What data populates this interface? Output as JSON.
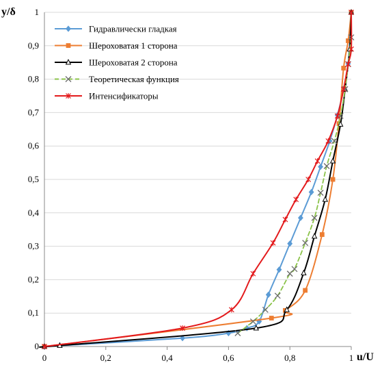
{
  "chart_data": {
    "type": "line",
    "xlabel": "u/U",
    "ylabel": "y/δ",
    "xlim": [
      0,
      1
    ],
    "ylim": [
      0,
      1
    ],
    "x_ticks": [
      "0",
      "0,2",
      "0,4",
      "0,6",
      "0,8",
      "1"
    ],
    "y_ticks": [
      "0",
      "0,1",
      "0,2",
      "0,3",
      "0,4",
      "0,5",
      "0,6",
      "0,7",
      "0,8",
      "0,9",
      "1"
    ],
    "grid": "horizontal",
    "legend_position": "top-left",
    "series": [
      {
        "name": "Гидравлически гладкая",
        "color": "#5B9BD5",
        "dash": "solid",
        "marker": "diamond",
        "x": [
          0,
          0.45,
          0.6,
          0.66,
          0.7,
          0.73,
          0.765,
          0.8,
          0.835,
          0.87,
          0.9,
          0.93,
          0.955,
          0.975,
          0.99,
          1.0
        ],
        "y": [
          0,
          0.025,
          0.04,
          0.055,
          0.075,
          0.155,
          0.23,
          0.308,
          0.385,
          0.462,
          0.538,
          0.615,
          0.692,
          0.77,
          0.846,
          1.0
        ]
      },
      {
        "name": "Шероховатая 1 сторона",
        "color": "#ED7D31",
        "dash": "solid",
        "marker": "square",
        "x": [
          0,
          0.74,
          0.785,
          0.85,
          0.905,
          0.94,
          0.96,
          0.975,
          0.99,
          1.0
        ],
        "y": [
          0,
          0.085,
          0.108,
          0.168,
          0.335,
          0.5,
          0.667,
          0.833,
          0.915,
          1.0
        ]
      },
      {
        "name": "Шероховатая 2 сторона",
        "color": "#000000",
        "dash": "solid",
        "marker": "triangle",
        "x": [
          0,
          0.05,
          0.69,
          0.79,
          0.845,
          0.88,
          0.915,
          0.94,
          0.965,
          0.98,
          0.995,
          1.0
        ],
        "y": [
          0,
          0.003,
          0.055,
          0.11,
          0.22,
          0.33,
          0.44,
          0.555,
          0.665,
          0.77,
          0.89,
          1.0
        ]
      },
      {
        "name": "Теоретическая функция",
        "color": "#8BC34A",
        "dash": "dashed",
        "marker": "x",
        "x": [
          0.63,
          0.68,
          0.72,
          0.76,
          0.8,
          0.815,
          0.85,
          0.88,
          0.9,
          0.92,
          0.945,
          0.965,
          0.98,
          0.99,
          1.0
        ],
        "y": [
          0.04,
          0.075,
          0.11,
          0.152,
          0.218,
          0.232,
          0.31,
          0.385,
          0.46,
          0.54,
          0.615,
          0.69,
          0.77,
          0.845,
          0.925
        ]
      },
      {
        "name": "Интенсификаторы",
        "color": "#E31A1C",
        "dash": "solid",
        "marker": "star",
        "x": [
          0,
          0.45,
          0.61,
          0.68,
          0.745,
          0.785,
          0.82,
          0.86,
          0.89,
          0.925,
          0.955,
          0.975,
          0.99,
          1.0,
          1.0
        ],
        "y": [
          0,
          0.055,
          0.11,
          0.218,
          0.31,
          0.38,
          0.44,
          0.5,
          0.555,
          0.615,
          0.69,
          0.77,
          0.845,
          0.89,
          1.0
        ]
      }
    ]
  }
}
